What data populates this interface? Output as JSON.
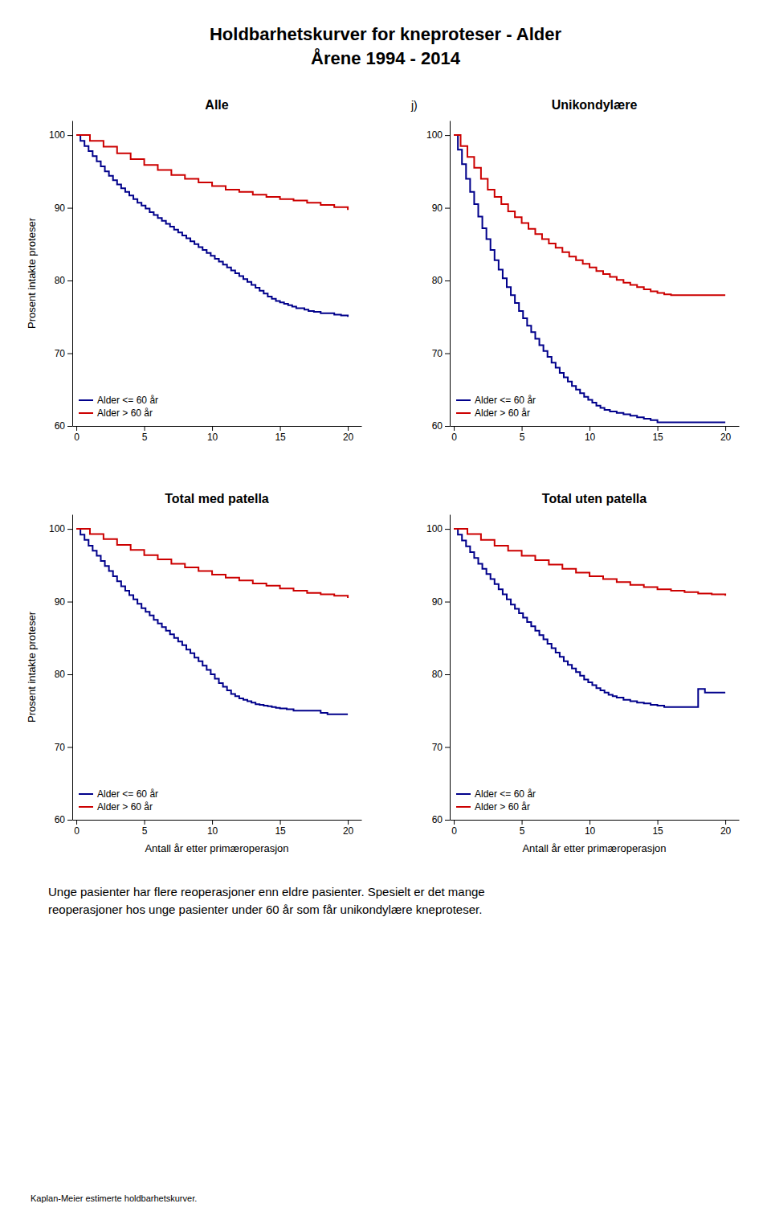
{
  "title": "Holdbarhetskurver for kneproteser - Alder",
  "subtitle": "Årene 1994 - 2014",
  "annotation": "Unge pasienter har flere reoperasjoner enn eldre pasienter. Spesielt er det mange\nreoperasjoner hos unge pasienter under 60 år som får unikondylære kneproteser.",
  "footnote": "Kaplan-Meier estimerte holdbarhetskurver.",
  "chart_data": [
    {
      "type": "line",
      "title": "Alle",
      "ylabel": "Prosent intakte proteser",
      "xlim": [
        -0.3,
        21
      ],
      "ylim": [
        60,
        102
      ],
      "xticks": [
        0,
        5,
        10,
        15,
        20
      ],
      "yticks": [
        60,
        70,
        80,
        90,
        100
      ],
      "grid": false,
      "legend": "lower left",
      "line_style": "step",
      "series": [
        {
          "name": "Alder <= 60 år",
          "color": "#00008B",
          "x": [
            0,
            0.3,
            0.6,
            0.9,
            1.2,
            1.5,
            1.8,
            2.1,
            2.4,
            2.7,
            3.0,
            3.3,
            3.6,
            3.9,
            4.2,
            4.5,
            4.8,
            5.1,
            5.4,
            5.7,
            6.0,
            6.3,
            6.6,
            6.9,
            7.2,
            7.5,
            7.8,
            8.1,
            8.4,
            8.7,
            9.0,
            9.3,
            9.6,
            9.9,
            10.2,
            10.5,
            10.8,
            11.1,
            11.4,
            11.7,
            12.0,
            12.3,
            12.6,
            12.9,
            13.2,
            13.5,
            13.8,
            14.1,
            14.4,
            14.7,
            15.0,
            15.3,
            15.6,
            15.9,
            16.2,
            16.5,
            16.8,
            17.1,
            17.5,
            18.0,
            18.5,
            19.0,
            19.5,
            20.0
          ],
          "values": [
            100,
            99.2,
            98.5,
            97.8,
            97.1,
            96.4,
            95.7,
            95.0,
            94.4,
            93.8,
            93.2,
            92.7,
            92.2,
            91.7,
            91.2,
            90.7,
            90.3,
            89.9,
            89.4,
            89.0,
            88.6,
            88.2,
            87.8,
            87.4,
            87.0,
            86.6,
            86.2,
            85.8,
            85.4,
            85.0,
            84.6,
            84.2,
            83.8,
            83.4,
            83.0,
            82.6,
            82.2,
            81.8,
            81.4,
            81.0,
            80.6,
            80.2,
            79.8,
            79.4,
            79.0,
            78.6,
            78.2,
            77.8,
            77.5,
            77.2,
            77.0,
            76.8,
            76.6,
            76.4,
            76.2,
            76.2,
            76.0,
            75.8,
            75.7,
            75.5,
            75.5,
            75.3,
            75.2,
            75.0
          ]
        },
        {
          "name": "Alder > 60 år",
          "color": "#CC0000",
          "x": [
            0,
            1,
            2,
            3,
            4,
            5,
            6,
            7,
            8,
            9,
            10,
            11,
            12,
            13,
            14,
            15,
            16,
            17,
            18,
            19,
            20
          ],
          "values": [
            100,
            99.2,
            98.4,
            97.5,
            96.7,
            95.9,
            95.2,
            94.5,
            94.0,
            93.5,
            93.0,
            92.5,
            92.2,
            91.8,
            91.5,
            91.2,
            91.0,
            90.7,
            90.4,
            90.1,
            89.7
          ]
        }
      ]
    },
    {
      "type": "line",
      "title": "Unikondylære",
      "annotations": [
        "j)"
      ],
      "xlim": [
        -0.3,
        21
      ],
      "ylim": [
        60,
        102
      ],
      "xticks": [
        0,
        5,
        10,
        15,
        20
      ],
      "yticks": [
        60,
        70,
        80,
        90,
        100
      ],
      "grid": false,
      "legend": "lower left",
      "line_style": "step",
      "series": [
        {
          "name": "Alder <= 60 år",
          "color": "#00008B",
          "x": [
            0,
            0.3,
            0.6,
            0.9,
            1.2,
            1.5,
            1.8,
            2.1,
            2.4,
            2.7,
            3.0,
            3.3,
            3.6,
            3.9,
            4.2,
            4.5,
            4.8,
            5.1,
            5.4,
            5.7,
            6.0,
            6.3,
            6.6,
            6.9,
            7.2,
            7.5,
            7.8,
            8.1,
            8.4,
            8.7,
            9.0,
            9.3,
            9.6,
            9.9,
            10.2,
            10.5,
            10.8,
            11.1,
            11.5,
            12.0,
            12.5,
            13.0,
            13.5,
            14.0,
            14.5,
            15.0,
            15.5,
            16.0,
            16.5,
            17.0,
            17.5,
            18.0,
            18.5,
            19.0,
            19.5,
            20.0
          ],
          "values": [
            100,
            98.0,
            96.0,
            94.0,
            92.2,
            90.5,
            88.8,
            87.2,
            85.7,
            84.2,
            82.8,
            81.5,
            80.3,
            79.1,
            78.0,
            76.9,
            75.8,
            74.8,
            73.8,
            72.9,
            72.0,
            71.1,
            70.3,
            69.5,
            68.7,
            68.0,
            67.3,
            66.7,
            66.1,
            65.5,
            65.0,
            64.5,
            64.0,
            63.6,
            63.2,
            62.8,
            62.5,
            62.2,
            62.0,
            61.8,
            61.6,
            61.4,
            61.2,
            61.0,
            60.8,
            60.5,
            60.5,
            60.5,
            60.5,
            60.5,
            60.5,
            60.5,
            60.5,
            60.5,
            60.5,
            60.5
          ]
        },
        {
          "name": "Alder > 60 år",
          "color": "#CC0000",
          "x": [
            0,
            0.5,
            1,
            1.5,
            2,
            2.5,
            3,
            3.5,
            4,
            4.5,
            5,
            5.5,
            6,
            6.5,
            7,
            7.5,
            8,
            8.5,
            9,
            9.5,
            10,
            10.5,
            11,
            11.5,
            12,
            12.5,
            13,
            13.5,
            14,
            14.5,
            15,
            15.5,
            16,
            16.5,
            17,
            17.5,
            18,
            18.5,
            19,
            19.5,
            20
          ],
          "values": [
            100,
            98.5,
            97.0,
            95.5,
            94.0,
            92.5,
            91.5,
            90.5,
            89.5,
            88.7,
            87.9,
            87.1,
            86.4,
            85.7,
            85.1,
            84.5,
            83.9,
            83.3,
            82.8,
            82.3,
            81.8,
            81.3,
            80.9,
            80.5,
            80.1,
            79.7,
            79.4,
            79.1,
            78.8,
            78.5,
            78.3,
            78.1,
            78.0,
            78.0,
            78.0,
            78.0,
            78.0,
            78.0,
            78.0,
            78.0,
            78.0
          ]
        }
      ]
    },
    {
      "type": "line",
      "title": "Total med patella",
      "ylabel": "Prosent intakte proteser",
      "xlabel": "Antall år etter primæroperasjon",
      "xlim": [
        -0.3,
        21
      ],
      "ylim": [
        60,
        102
      ],
      "xticks": [
        0,
        5,
        10,
        15,
        20
      ],
      "yticks": [
        60,
        70,
        80,
        90,
        100
      ],
      "grid": false,
      "legend": "lower left",
      "line_style": "step",
      "series": [
        {
          "name": "Alder <= 60 år",
          "color": "#00008B",
          "x": [
            0,
            0.3,
            0.6,
            0.9,
            1.2,
            1.5,
            1.8,
            2.1,
            2.4,
            2.7,
            3.0,
            3.3,
            3.6,
            3.9,
            4.2,
            4.5,
            4.8,
            5.1,
            5.4,
            5.7,
            6.0,
            6.3,
            6.6,
            6.9,
            7.2,
            7.5,
            7.8,
            8.1,
            8.4,
            8.7,
            9.0,
            9.3,
            9.6,
            9.9,
            10.2,
            10.5,
            10.8,
            11.1,
            11.4,
            11.7,
            12.0,
            12.3,
            12.6,
            12.9,
            13.2,
            13.5,
            13.8,
            14.1,
            14.4,
            14.7,
            15.0,
            15.5,
            16.0,
            16.5,
            17.0,
            17.5,
            18.0,
            18.5,
            19.0,
            19.5,
            20.0
          ],
          "values": [
            100,
            99.2,
            98.5,
            97.7,
            97.0,
            96.3,
            95.6,
            94.9,
            94.2,
            93.5,
            92.8,
            92.1,
            91.5,
            90.9,
            90.3,
            89.7,
            89.1,
            88.6,
            88.1,
            87.5,
            87.0,
            86.5,
            86.0,
            85.5,
            85.0,
            84.5,
            84.0,
            83.4,
            82.9,
            82.3,
            81.8,
            81.2,
            80.6,
            80.0,
            79.4,
            78.8,
            78.3,
            77.8,
            77.3,
            77.0,
            76.7,
            76.5,
            76.3,
            76.1,
            75.9,
            75.8,
            75.7,
            75.6,
            75.5,
            75.4,
            75.3,
            75.2,
            75.0,
            75.0,
            75.0,
            75.0,
            74.7,
            74.5,
            74.5,
            74.5,
            74.5
          ]
        },
        {
          "name": "Alder > 60 år",
          "color": "#CC0000",
          "x": [
            0,
            1,
            2,
            3,
            4,
            5,
            6,
            7,
            8,
            9,
            10,
            11,
            12,
            13,
            14,
            15,
            16,
            17,
            18,
            19,
            20
          ],
          "values": [
            100,
            99.3,
            98.6,
            97.8,
            97.1,
            96.4,
            95.8,
            95.2,
            94.7,
            94.2,
            93.7,
            93.3,
            92.9,
            92.5,
            92.2,
            91.8,
            91.5,
            91.2,
            91.0,
            90.8,
            90.5
          ]
        }
      ]
    },
    {
      "type": "line",
      "title": "Total uten patella",
      "xlabel": "Antall år etter primæroperasjon",
      "xlim": [
        -0.3,
        21
      ],
      "ylim": [
        60,
        102
      ],
      "xticks": [
        0,
        5,
        10,
        15,
        20
      ],
      "yticks": [
        60,
        70,
        80,
        90,
        100
      ],
      "grid": false,
      "legend": "lower left",
      "line_style": "step",
      "series": [
        {
          "name": "Alder <= 60 år",
          "color": "#00008B",
          "x": [
            0,
            0.3,
            0.6,
            0.9,
            1.2,
            1.5,
            1.8,
            2.1,
            2.4,
            2.7,
            3.0,
            3.3,
            3.6,
            3.9,
            4.2,
            4.5,
            4.8,
            5.1,
            5.4,
            5.7,
            6.0,
            6.3,
            6.6,
            6.9,
            7.2,
            7.5,
            7.8,
            8.1,
            8.4,
            8.7,
            9.0,
            9.3,
            9.6,
            9.9,
            10.2,
            10.5,
            10.8,
            11.1,
            11.4,
            11.7,
            12.0,
            12.5,
            13.0,
            13.5,
            14.0,
            14.5,
            15.0,
            15.5,
            16.0,
            17.0,
            18.0,
            18.5,
            19.0,
            19.5,
            20.0
          ],
          "values": [
            100,
            99.2,
            98.4,
            97.6,
            96.8,
            96.0,
            95.2,
            94.5,
            93.8,
            93.1,
            92.4,
            91.7,
            91.0,
            90.3,
            89.6,
            89.0,
            88.4,
            87.8,
            87.2,
            86.6,
            86.0,
            85.4,
            84.8,
            84.2,
            83.6,
            83.0,
            82.4,
            81.8,
            81.3,
            80.8,
            80.3,
            79.8,
            79.3,
            78.9,
            78.5,
            78.1,
            77.8,
            77.5,
            77.2,
            77.0,
            76.8,
            76.5,
            76.3,
            76.1,
            76.0,
            75.8,
            75.7,
            75.5,
            75.5,
            75.5,
            78.0,
            77.5,
            77.5,
            77.5,
            77.5
          ]
        },
        {
          "name": "Alder > 60 år",
          "color": "#CC0000",
          "x": [
            0,
            1,
            2,
            3,
            4,
            5,
            6,
            7,
            8,
            9,
            10,
            11,
            12,
            13,
            14,
            15,
            16,
            17,
            18,
            19,
            20
          ],
          "values": [
            100,
            99.3,
            98.5,
            97.7,
            97.0,
            96.3,
            95.7,
            95.1,
            94.5,
            94.0,
            93.5,
            93.1,
            92.7,
            92.3,
            92.0,
            91.7,
            91.5,
            91.3,
            91.1,
            91.0,
            90.8
          ]
        }
      ]
    }
  ]
}
